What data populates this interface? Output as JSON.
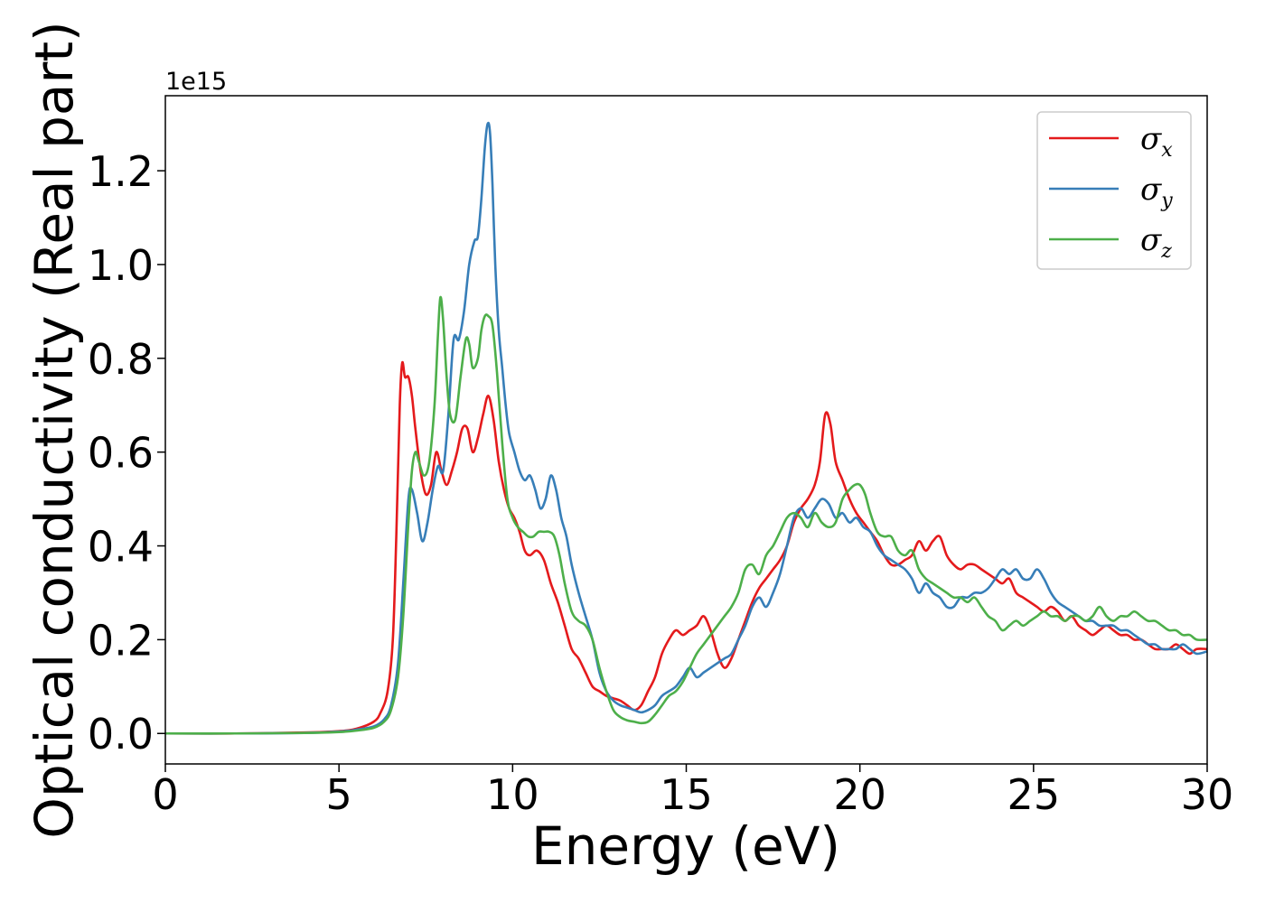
{
  "chart_data": {
    "type": "line",
    "xlabel": "Energy (eV)",
    "ylabel": "Optical conductivity (Real part)",
    "y_offset_label": "1e15",
    "xlim": [
      0,
      30
    ],
    "ylim": [
      -0.065,
      1.36
    ],
    "x_ticks": [
      0,
      5,
      10,
      15,
      20,
      25,
      30
    ],
    "x_tick_labels": [
      "0",
      "5",
      "10",
      "15",
      "20",
      "25",
      "30"
    ],
    "y_ticks": [
      0.0,
      0.2,
      0.4,
      0.6,
      0.8,
      1.0,
      1.2
    ],
    "y_tick_labels": [
      "0.0",
      "0.2",
      "0.4",
      "0.6",
      "0.8",
      "1.0",
      "1.2"
    ],
    "grid": false,
    "legend_position": "top-right",
    "series": [
      {
        "name": "σx",
        "symbol": "σ",
        "subscript": "x",
        "color": "#e41a1c",
        "x": [
          0,
          2,
          4,
          5,
          5.5,
          6,
          6.2,
          6.4,
          6.55,
          6.65,
          6.75,
          6.82,
          6.9,
          7.0,
          7.1,
          7.2,
          7.35,
          7.5,
          7.65,
          7.8,
          7.95,
          8.1,
          8.25,
          8.4,
          8.55,
          8.7,
          8.85,
          9.0,
          9.15,
          9.3,
          9.45,
          9.6,
          9.75,
          9.9,
          10.05,
          10.2,
          10.35,
          10.5,
          10.7,
          10.9,
          11.1,
          11.3,
          11.5,
          11.7,
          11.9,
          12.1,
          12.3,
          12.5,
          12.7,
          12.9,
          13.1,
          13.3,
          13.5,
          13.7,
          13.9,
          14.1,
          14.3,
          14.5,
          14.7,
          14.9,
          15.1,
          15.3,
          15.5,
          15.7,
          15.9,
          16.1,
          16.3,
          16.5,
          16.7,
          16.9,
          17.1,
          17.3,
          17.5,
          17.7,
          17.9,
          18.1,
          18.3,
          18.5,
          18.7,
          18.85,
          19.0,
          19.15,
          19.3,
          19.5,
          19.7,
          19.9,
          20.1,
          20.3,
          20.5,
          20.7,
          20.9,
          21.1,
          21.3,
          21.5,
          21.7,
          21.9,
          22.1,
          22.3,
          22.5,
          22.7,
          22.9,
          23.1,
          23.3,
          23.5,
          23.7,
          23.9,
          24.1,
          24.3,
          24.5,
          24.7,
          24.9,
          25.1,
          25.3,
          25.5,
          25.7,
          25.9,
          26.1,
          26.3,
          26.5,
          26.7,
          26.9,
          27.1,
          27.3,
          27.5,
          27.7,
          27.9,
          28.1,
          28.3,
          28.5,
          28.7,
          28.9,
          29.1,
          29.3,
          29.5,
          29.7,
          30.0
        ],
        "y": [
          0.0,
          0.0,
          0.002,
          0.005,
          0.01,
          0.025,
          0.045,
          0.09,
          0.2,
          0.42,
          0.7,
          0.79,
          0.76,
          0.76,
          0.72,
          0.65,
          0.56,
          0.51,
          0.53,
          0.6,
          0.56,
          0.53,
          0.56,
          0.6,
          0.65,
          0.65,
          0.6,
          0.63,
          0.68,
          0.72,
          0.67,
          0.58,
          0.52,
          0.48,
          0.46,
          0.43,
          0.39,
          0.38,
          0.39,
          0.37,
          0.32,
          0.28,
          0.23,
          0.18,
          0.16,
          0.13,
          0.1,
          0.09,
          0.08,
          0.075,
          0.07,
          0.06,
          0.05,
          0.06,
          0.09,
          0.12,
          0.17,
          0.2,
          0.22,
          0.21,
          0.22,
          0.23,
          0.25,
          0.22,
          0.17,
          0.14,
          0.16,
          0.2,
          0.24,
          0.28,
          0.31,
          0.33,
          0.35,
          0.37,
          0.4,
          0.45,
          0.48,
          0.5,
          0.53,
          0.58,
          0.68,
          0.66,
          0.58,
          0.54,
          0.5,
          0.47,
          0.45,
          0.43,
          0.41,
          0.38,
          0.36,
          0.36,
          0.37,
          0.38,
          0.41,
          0.39,
          0.41,
          0.42,
          0.38,
          0.36,
          0.35,
          0.36,
          0.36,
          0.35,
          0.34,
          0.33,
          0.32,
          0.33,
          0.3,
          0.29,
          0.28,
          0.27,
          0.26,
          0.27,
          0.26,
          0.24,
          0.25,
          0.23,
          0.22,
          0.21,
          0.22,
          0.23,
          0.22,
          0.21,
          0.21,
          0.2,
          0.2,
          0.19,
          0.18,
          0.18,
          0.18,
          0.19,
          0.18,
          0.17,
          0.18,
          0.18
        ]
      },
      {
        "name": "σy",
        "symbol": "σ",
        "subscript": "y",
        "color": "#377eb8",
        "x": [
          0,
          2,
          4,
          5,
          5.5,
          6,
          6.3,
          6.5,
          6.7,
          6.85,
          7.0,
          7.1,
          7.25,
          7.4,
          7.55,
          7.7,
          7.85,
          8.0,
          8.15,
          8.3,
          8.45,
          8.6,
          8.75,
          8.9,
          9.0,
          9.1,
          9.2,
          9.28,
          9.35,
          9.42,
          9.5,
          9.6,
          9.7,
          9.8,
          9.9,
          10.05,
          10.2,
          10.35,
          10.5,
          10.65,
          10.8,
          10.95,
          11.1,
          11.25,
          11.4,
          11.55,
          11.7,
          11.9,
          12.1,
          12.3,
          12.5,
          12.7,
          12.9,
          13.1,
          13.3,
          13.5,
          13.7,
          13.9,
          14.1,
          14.3,
          14.5,
          14.7,
          14.9,
          15.1,
          15.3,
          15.5,
          15.7,
          15.9,
          16.1,
          16.3,
          16.5,
          16.7,
          16.9,
          17.1,
          17.3,
          17.5,
          17.7,
          17.9,
          18.1,
          18.3,
          18.5,
          18.7,
          18.9,
          19.1,
          19.3,
          19.5,
          19.7,
          19.9,
          20.1,
          20.3,
          20.5,
          20.7,
          20.9,
          21.1,
          21.3,
          21.5,
          21.7,
          21.9,
          22.1,
          22.3,
          22.5,
          22.7,
          22.9,
          23.1,
          23.3,
          23.5,
          23.7,
          23.9,
          24.1,
          24.3,
          24.5,
          24.7,
          24.9,
          25.1,
          25.3,
          25.5,
          25.7,
          25.9,
          26.1,
          26.3,
          26.5,
          26.7,
          26.9,
          27.1,
          27.3,
          27.5,
          27.7,
          27.9,
          28.1,
          28.3,
          28.5,
          28.7,
          28.9,
          29.1,
          29.3,
          29.5,
          29.7,
          30.0
        ],
        "y": [
          0.0,
          0.0,
          0.001,
          0.004,
          0.008,
          0.015,
          0.03,
          0.06,
          0.15,
          0.32,
          0.5,
          0.52,
          0.47,
          0.41,
          0.45,
          0.52,
          0.57,
          0.56,
          0.68,
          0.84,
          0.84,
          0.9,
          1.0,
          1.05,
          1.06,
          1.14,
          1.25,
          1.3,
          1.28,
          1.17,
          1.0,
          0.86,
          0.78,
          0.7,
          0.64,
          0.6,
          0.56,
          0.54,
          0.55,
          0.52,
          0.48,
          0.5,
          0.55,
          0.52,
          0.46,
          0.42,
          0.36,
          0.3,
          0.25,
          0.2,
          0.13,
          0.09,
          0.07,
          0.06,
          0.055,
          0.05,
          0.045,
          0.05,
          0.06,
          0.08,
          0.09,
          0.1,
          0.12,
          0.14,
          0.12,
          0.13,
          0.14,
          0.15,
          0.16,
          0.17,
          0.2,
          0.23,
          0.27,
          0.29,
          0.27,
          0.3,
          0.34,
          0.4,
          0.46,
          0.48,
          0.46,
          0.48,
          0.5,
          0.49,
          0.46,
          0.47,
          0.45,
          0.46,
          0.44,
          0.43,
          0.4,
          0.38,
          0.37,
          0.36,
          0.35,
          0.33,
          0.3,
          0.32,
          0.3,
          0.29,
          0.27,
          0.27,
          0.29,
          0.29,
          0.3,
          0.3,
          0.31,
          0.33,
          0.35,
          0.34,
          0.35,
          0.33,
          0.33,
          0.35,
          0.33,
          0.3,
          0.28,
          0.27,
          0.26,
          0.25,
          0.24,
          0.24,
          0.23,
          0.23,
          0.23,
          0.22,
          0.22,
          0.21,
          0.2,
          0.19,
          0.19,
          0.18,
          0.18,
          0.18,
          0.19,
          0.18,
          0.17,
          0.175
        ]
      },
      {
        "name": "σz",
        "symbol": "σ",
        "subscript": "z",
        "color": "#4daf4a",
        "x": [
          0,
          2,
          4,
          5,
          5.5,
          6,
          6.3,
          6.5,
          6.7,
          6.85,
          7.0,
          7.1,
          7.2,
          7.3,
          7.45,
          7.6,
          7.75,
          7.85,
          7.92,
          8.0,
          8.1,
          8.2,
          8.35,
          8.5,
          8.65,
          8.75,
          8.85,
          9.0,
          9.1,
          9.2,
          9.3,
          9.42,
          9.55,
          9.7,
          9.85,
          10.0,
          10.15,
          10.3,
          10.45,
          10.6,
          10.75,
          10.9,
          11.05,
          11.2,
          11.35,
          11.5,
          11.7,
          11.9,
          12.1,
          12.3,
          12.5,
          12.7,
          12.9,
          13.1,
          13.3,
          13.5,
          13.7,
          13.9,
          14.1,
          14.3,
          14.5,
          14.7,
          14.9,
          15.1,
          15.3,
          15.5,
          15.7,
          15.9,
          16.1,
          16.3,
          16.5,
          16.7,
          16.9,
          17.1,
          17.3,
          17.5,
          17.7,
          17.9,
          18.1,
          18.3,
          18.5,
          18.7,
          18.9,
          19.1,
          19.3,
          19.5,
          19.7,
          19.85,
          20.0,
          20.15,
          20.3,
          20.5,
          20.7,
          20.9,
          21.1,
          21.3,
          21.5,
          21.7,
          21.9,
          22.1,
          22.3,
          22.5,
          22.7,
          22.9,
          23.1,
          23.3,
          23.5,
          23.7,
          23.9,
          24.1,
          24.3,
          24.5,
          24.7,
          24.9,
          25.1,
          25.3,
          25.5,
          25.7,
          25.9,
          26.1,
          26.3,
          26.5,
          26.7,
          26.9,
          27.1,
          27.3,
          27.5,
          27.7,
          27.9,
          28.1,
          28.3,
          28.5,
          28.7,
          28.9,
          29.1,
          29.3,
          29.5,
          29.7,
          30.0
        ],
        "y": [
          0.0,
          0.0,
          0.001,
          0.003,
          0.006,
          0.012,
          0.025,
          0.05,
          0.12,
          0.25,
          0.45,
          0.56,
          0.6,
          0.58,
          0.55,
          0.58,
          0.7,
          0.85,
          0.93,
          0.88,
          0.76,
          0.68,
          0.67,
          0.76,
          0.84,
          0.83,
          0.78,
          0.8,
          0.86,
          0.89,
          0.89,
          0.87,
          0.77,
          0.62,
          0.5,
          0.46,
          0.44,
          0.43,
          0.42,
          0.42,
          0.43,
          0.43,
          0.43,
          0.42,
          0.38,
          0.32,
          0.26,
          0.24,
          0.23,
          0.2,
          0.14,
          0.09,
          0.05,
          0.035,
          0.028,
          0.025,
          0.022,
          0.025,
          0.04,
          0.06,
          0.08,
          0.09,
          0.11,
          0.14,
          0.17,
          0.19,
          0.21,
          0.23,
          0.25,
          0.27,
          0.3,
          0.35,
          0.36,
          0.34,
          0.38,
          0.4,
          0.43,
          0.46,
          0.47,
          0.46,
          0.44,
          0.47,
          0.45,
          0.44,
          0.45,
          0.5,
          0.52,
          0.53,
          0.53,
          0.51,
          0.47,
          0.43,
          0.42,
          0.42,
          0.39,
          0.38,
          0.39,
          0.35,
          0.33,
          0.32,
          0.31,
          0.3,
          0.29,
          0.29,
          0.28,
          0.29,
          0.27,
          0.25,
          0.24,
          0.22,
          0.23,
          0.24,
          0.23,
          0.24,
          0.25,
          0.26,
          0.25,
          0.25,
          0.24,
          0.25,
          0.25,
          0.24,
          0.25,
          0.27,
          0.25,
          0.24,
          0.25,
          0.25,
          0.26,
          0.25,
          0.24,
          0.24,
          0.23,
          0.22,
          0.22,
          0.21,
          0.21,
          0.2,
          0.2
        ]
      }
    ]
  }
}
